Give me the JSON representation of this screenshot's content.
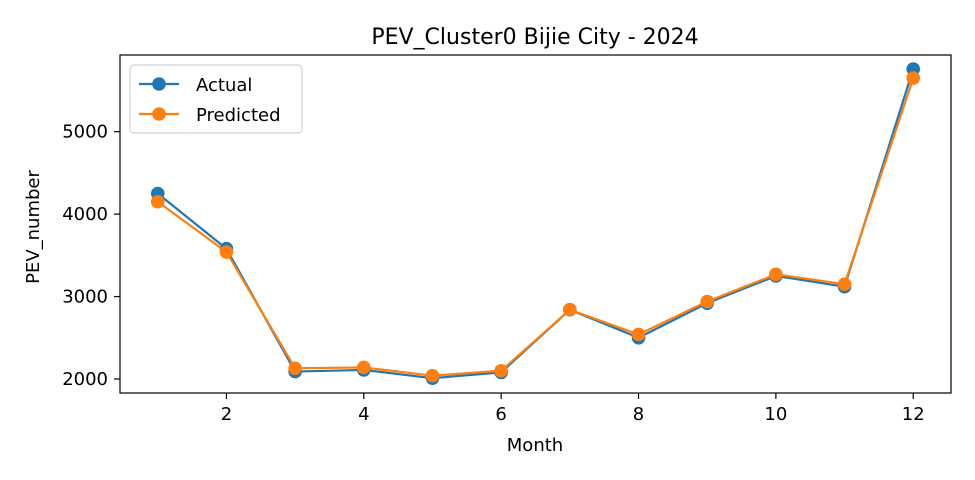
{
  "chart_data": {
    "type": "line",
    "title": "PEV_Cluster0 Bijie City - 2024",
    "xlabel": "Month",
    "ylabel": "PEV_number",
    "x": [
      1,
      2,
      3,
      4,
      5,
      6,
      7,
      8,
      9,
      10,
      11,
      12
    ],
    "xticks": [
      2,
      4,
      6,
      8,
      10,
      12
    ],
    "yticks": [
      2000,
      3000,
      4000,
      5000
    ],
    "xlim": [
      0.45,
      12.55
    ],
    "ylim": [
      1830,
      5930
    ],
    "grid": false,
    "legend_position": "upper-left",
    "series": [
      {
        "name": "Actual",
        "color": "#1f77b4",
        "marker": "circle",
        "values": [
          4250,
          3580,
          2090,
          2110,
          2010,
          2080,
          2840,
          2500,
          2920,
          3250,
          3120,
          5760
        ]
      },
      {
        "name": "Predicted",
        "color": "#ff7f0e",
        "marker": "circle",
        "values": [
          4150,
          3540,
          2130,
          2140,
          2040,
          2100,
          2840,
          2540,
          2940,
          3270,
          3150,
          5650
        ]
      }
    ]
  }
}
